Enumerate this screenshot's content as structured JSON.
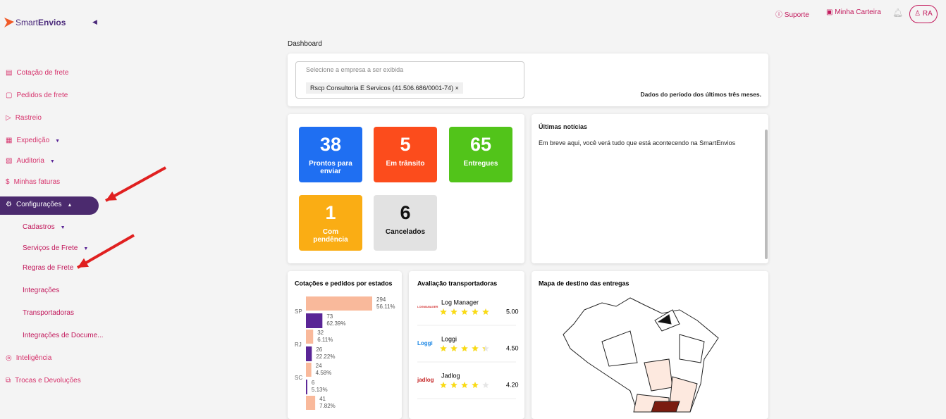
{
  "brand": [
    "Smart",
    "Envios"
  ],
  "header": {
    "support": "Suporte",
    "wallet": "Minha Carteira",
    "avatar": "RA"
  },
  "nav": [
    "Cotação de frete",
    "Pedidos de frete",
    "Rastreio",
    "Expedição",
    "Auditoria",
    "Minhas faturas",
    "Configurações",
    "Cadastros",
    "Serviços de Frete",
    "Regras de Frete",
    "Integrações",
    "Transportadoras",
    "Integrações de Docume...",
    "Inteligência",
    "Trocas e Devoluções"
  ],
  "page_title": "Dashboard",
  "filter": {
    "placeholder": "Selecione a empresa a ser exibida",
    "selected": "Rscp Consultoria E Servicos (41.506.686/0001-74)",
    "period_note": "Dados do período dos últimos três meses."
  },
  "status": [
    {
      "count": 38,
      "label": "Prontos para enviar"
    },
    {
      "count": 5,
      "label": "Em trânsito"
    },
    {
      "count": 65,
      "label": "Entregues"
    },
    {
      "count": 1,
      "label": "Com pendência"
    },
    {
      "count": 6,
      "label": "Cancelados"
    }
  ],
  "news": {
    "title": "Últimas notícias",
    "text": "Em breve aqui, você verá tudo que está acontecendo na SmartEnvios"
  },
  "state_chart": {
    "type": "bar",
    "title": "Cotações e pedidos por estados",
    "categories": [
      "SP",
      "RJ",
      "SC",
      null
    ],
    "series": [
      {
        "color": "#f9b99b",
        "values": [
          294,
          32,
          24,
          41
        ],
        "percent_labels": [
          "56.11%",
          "6.11%",
          "4.58%",
          "7.82%"
        ]
      },
      {
        "color": "#5a2596",
        "values": [
          73,
          26,
          6,
          null
        ],
        "percent_labels": [
          "62.39%",
          "22.22%",
          "5.13%",
          null
        ]
      }
    ]
  },
  "carriers": {
    "title": "Avaliação transportadoras",
    "logos": [
      "LOGMANAGER",
      "Loggi",
      "jadlog"
    ],
    "names": [
      "Log Manager",
      "Loggi",
      "Jadlog"
    ],
    "values": [
      5,
      4.5,
      4.2
    ],
    "value_labels": [
      "5.00",
      "4.50",
      "4.20"
    ]
  },
  "map": {
    "title": "Mapa de destino das entregas"
  }
}
